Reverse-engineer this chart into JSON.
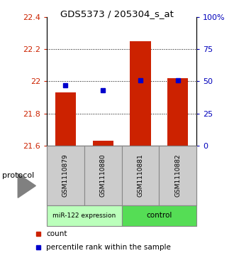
{
  "title": "GDS5373 / 205304_s_at",
  "samples": [
    "GSM1110879",
    "GSM1110880",
    "GSM1110881",
    "GSM1110882"
  ],
  "count_values": [
    21.93,
    21.63,
    22.25,
    22.02
  ],
  "percentile_values": [
    47,
    43,
    51,
    51
  ],
  "ylim_left": [
    21.6,
    22.4
  ],
  "ylim_right": [
    0,
    100
  ],
  "yticks_left": [
    21.6,
    21.8,
    22.0,
    22.2,
    22.4
  ],
  "ytick_labels_left": [
    "21.6",
    "21.8",
    "22",
    "22.2",
    "22.4"
  ],
  "yticks_right": [
    0,
    25,
    50,
    75,
    100
  ],
  "ytick_labels_right": [
    "0",
    "25",
    "50",
    "75",
    "100%"
  ],
  "bar_color": "#cc2200",
  "dot_color": "#0000cc",
  "group1_label": "miR-122 expression",
  "group2_label": "control",
  "group1_color": "#bbffbb",
  "group2_color": "#55dd55",
  "protocol_label": "protocol",
  "legend_count_label": "count",
  "legend_pct_label": "percentile rank within the sample",
  "bar_bottom": 21.6,
  "bar_width": 0.55,
  "sample_box_color": "#cccccc",
  "left_tick_color": "#cc2200",
  "right_tick_color": "#0000bb"
}
